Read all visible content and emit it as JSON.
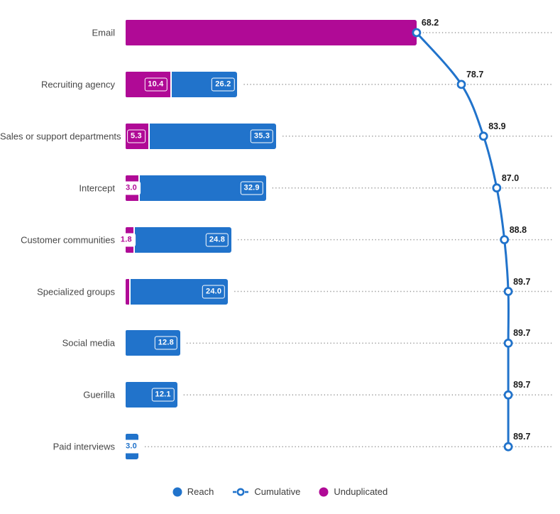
{
  "page": {
    "background": "#ffffff"
  },
  "chart_data": {
    "type": "bar",
    "orientation": "horizontal",
    "title": "",
    "xlabel": "",
    "ylabel": "",
    "xlim": [
      0,
      100
    ],
    "grid": false,
    "legend_position": "bottom",
    "categories": [
      "Email",
      "Recruiting agency",
      "Sales or support departments",
      "Intercept",
      "Customer communities",
      "Specialized groups",
      "Social media",
      "Guerilla",
      "Paid interviews"
    ],
    "series": [
      {
        "name": "Reach",
        "type": "bar",
        "color": "#2173CB",
        "values": [
          68.2,
          26.2,
          35.3,
          32.9,
          24.8,
          24.0,
          12.8,
          12.1,
          3.0
        ],
        "labels": [
          "",
          "26.2",
          "35.3",
          "32.9",
          "24.8",
          "24.0",
          "12.8",
          "12.1",
          "3.0"
        ]
      },
      {
        "name": "Unduplicated",
        "type": "bar-overlay",
        "color": "#B00A96",
        "values": [
          68.2,
          10.4,
          5.3,
          3.0,
          1.8,
          0.8,
          0,
          0,
          0
        ],
        "labels": [
          "",
          "10.4",
          "5.3",
          "3.0",
          "1.8",
          "",
          "",
          "",
          ""
        ]
      },
      {
        "name": "Cumulative",
        "type": "line",
        "color": "#2173CB",
        "values": [
          68.2,
          78.7,
          83.9,
          87.0,
          88.8,
          89.7,
          89.7,
          89.7,
          89.7
        ],
        "labels": [
          "68.2",
          "78.7",
          "83.9",
          "87.0",
          "88.8",
          "89.7",
          "89.7",
          "89.7",
          "89.7"
        ]
      }
    ],
    "legend": [
      {
        "label": "Reach",
        "marker": "filled-circle",
        "color": "#2173CB"
      },
      {
        "label": "Cumulative",
        "marker": "open-circle-line",
        "color": "#2173CB"
      },
      {
        "label": "Unduplicated",
        "marker": "filled-circle",
        "color": "#B00A96"
      }
    ],
    "colors": {
      "reach": "#2173CB",
      "unduplicated": "#B00A96",
      "leader_dots": "#9a9a9a",
      "value_text": "#1c1c1c",
      "category_text": "#474747",
      "legend_text": "#3c3c3c"
    }
  }
}
